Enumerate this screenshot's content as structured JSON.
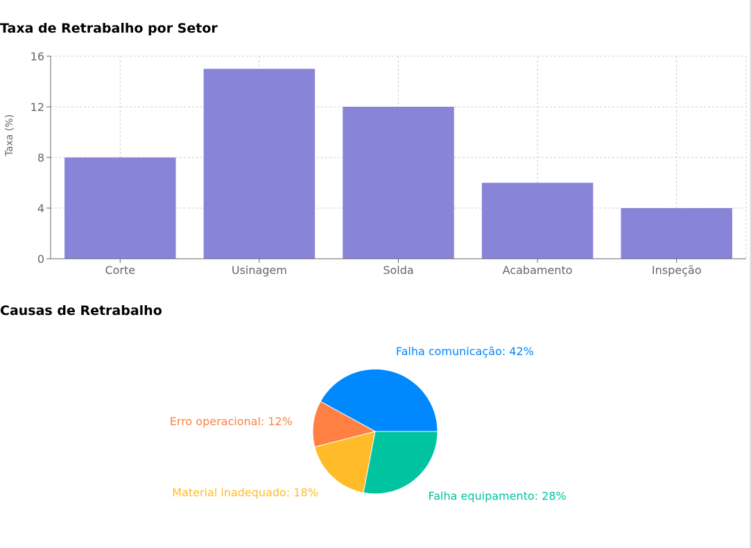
{
  "bar_section": {
    "title": "Taxa de Retrabalho por Setor"
  },
  "pie_section": {
    "title": "Causas de Retrabalho"
  },
  "colors": {
    "bar": "#8884d8",
    "axis": "#666666",
    "grid": "#cccccc"
  },
  "chart_data": [
    {
      "type": "bar",
      "title": "Taxa de Retrabalho por Setor",
      "categories": [
        "Corte",
        "Usinagem",
        "Solda",
        "Acabamento",
        "Inspeção"
      ],
      "values": [
        8,
        15,
        12,
        6,
        4
      ],
      "ylabel": "Taxa (%)",
      "xlabel": "",
      "ylim": [
        0,
        16
      ],
      "yticks": [
        0,
        4,
        8,
        12,
        16
      ],
      "grid": true
    },
    {
      "type": "pie",
      "title": "Causas de Retrabalho",
      "slices": [
        {
          "label": "Falha comunicação: 42%",
          "value": 42,
          "color": "#0088fe"
        },
        {
          "label": "Erro operacional: 12%",
          "value": 12,
          "color": "#ff8042"
        },
        {
          "label": "Material inadequado: 18%",
          "value": 18,
          "color": "#ffbb28"
        },
        {
          "label": "Falha equipamento: 28%",
          "value": 28,
          "color": "#00c49f"
        }
      ]
    }
  ]
}
